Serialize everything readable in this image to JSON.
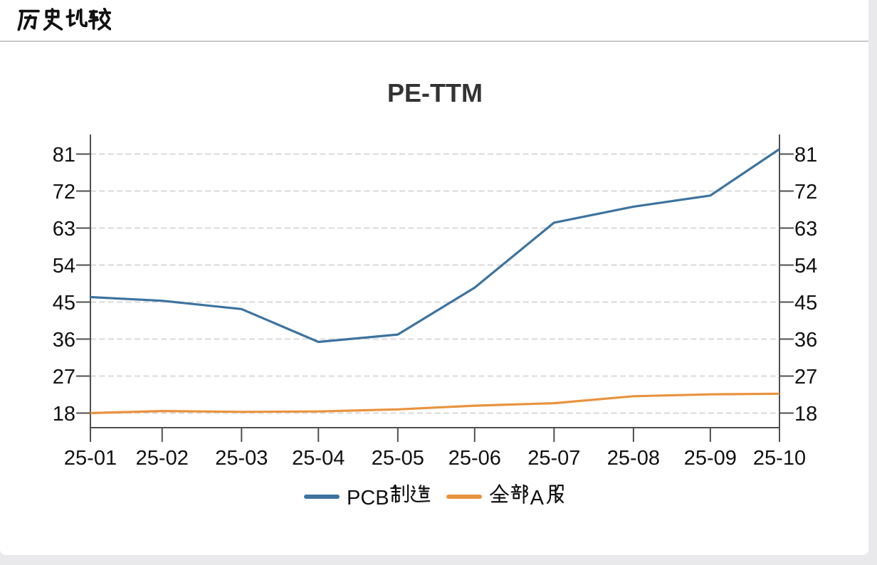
{
  "header": {
    "title": "历史比较"
  },
  "colors": {
    "page_background": "#e9e9eb",
    "card_background": "#ffffff",
    "divider": "#c7c9cc",
    "axis": "#4f4f4f",
    "grid": "#d9d9d9",
    "text": "#111111",
    "title": "#333333"
  },
  "chart_data": {
    "type": "line",
    "title": "PE-TTM",
    "categories": [
      "25-01",
      "25-02",
      "25-03",
      "25-04",
      "25-05",
      "25-06",
      "25-07",
      "25-08",
      "25-09",
      "25-10"
    ],
    "x_day_offsets": [
      0,
      28,
      59,
      89,
      120,
      150,
      181,
      212,
      242,
      269
    ],
    "series": [
      {
        "name": "PCB制造",
        "color": "#3d739f",
        "values": [
          46.2,
          45.3,
          43.3,
          35.3,
          37.1,
          48.5,
          64.3,
          68.2,
          70.9,
          82.2
        ]
      },
      {
        "name": "全部A股",
        "color": "#e9933f",
        "values": [
          18.0,
          18.5,
          18.3,
          18.4,
          18.9,
          19.8,
          20.4,
          22.1,
          22.55,
          22.7
        ]
      }
    ],
    "y_ticks": [
      18,
      27,
      36,
      45,
      54,
      63,
      72,
      81
    ],
    "ylim": [
      14.45,
      85.75
    ],
    "grid": true,
    "grid_dashed": true,
    "legend_position": "bottom",
    "y_axis_mirrored": true
  }
}
